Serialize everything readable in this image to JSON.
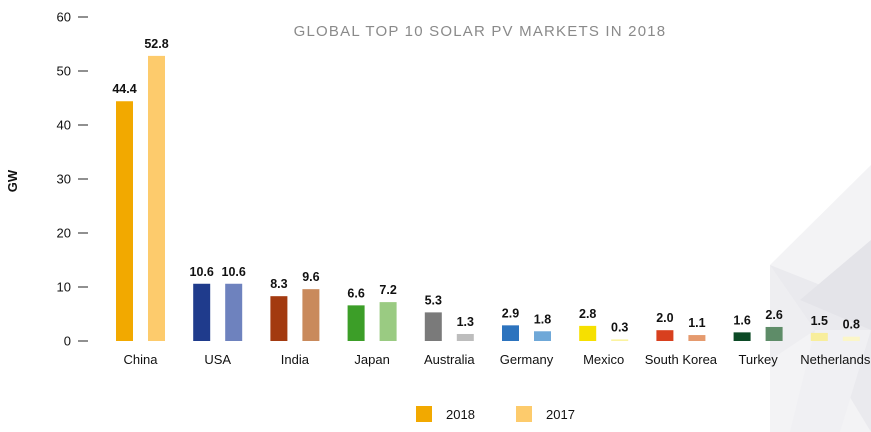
{
  "chart_data": {
    "type": "bar",
    "title": "GLOBAL TOP 10 SOLAR PV MARKETS IN 2018",
    "ylabel": "GW",
    "xlabel": "",
    "ylim": [
      0,
      60
    ],
    "yticks": [
      "0",
      "10",
      "20",
      "30",
      "40",
      "50",
      "60"
    ],
    "grid": false,
    "legend_position": "bottom-center",
    "categories": [
      "China",
      "USA",
      "India",
      "Japan",
      "Australia",
      "Germany",
      "Mexico",
      "South Korea",
      "Turkey",
      "Netherlands"
    ],
    "series": [
      {
        "name": "2018",
        "values": [
          44.4,
          10.6,
          8.3,
          6.6,
          5.3,
          2.9,
          2.8,
          2.0,
          1.6,
          1.5
        ],
        "labels": [
          "44.4",
          "10.6",
          "8.3",
          "6.6",
          "5.3",
          "2.9",
          "2.8",
          "2.0",
          "1.6",
          "1.5"
        ],
        "colors": [
          "#F2A900",
          "#1F3B8C",
          "#A33A10",
          "#3C9E28",
          "#7A7A7A",
          "#2C73BE",
          "#F6E000",
          "#D8401E",
          "#0C4A26",
          "#F8EE9C"
        ]
      },
      {
        "name": "2017",
        "values": [
          52.8,
          10.6,
          9.6,
          7.2,
          1.3,
          1.8,
          0.3,
          1.1,
          2.6,
          0.8
        ],
        "labels": [
          "52.8",
          "10.6",
          "9.6",
          "7.2",
          "1.3",
          "1.8",
          "0.3",
          "1.1",
          "2.6",
          "0.8"
        ],
        "colors": [
          "#FDCB6C",
          "#6E82BE",
          "#C98A5C",
          "#9ACB82",
          "#BDBDBD",
          "#6FA8D8",
          "#FBF3A0",
          "#E59A6E",
          "#5E8C68",
          "#FBF6C8"
        ]
      }
    ],
    "legend": [
      {
        "label": "2018",
        "color": "#F2A900"
      },
      {
        "label": "2017",
        "color": "#FDCB6C"
      }
    ]
  }
}
